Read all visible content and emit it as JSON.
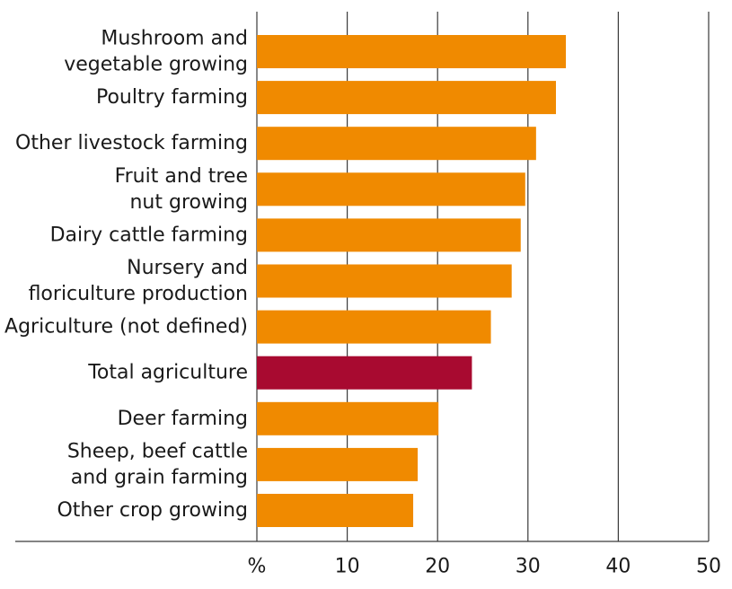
{
  "chart_data": {
    "type": "bar",
    "orientation": "horizontal",
    "categories": [
      [
        "Mushroom and",
        "vegetable growing"
      ],
      [
        "Poultry farming"
      ],
      [
        "Other livestock farming"
      ],
      [
        "Fruit and tree",
        "nut growing"
      ],
      [
        "Dairy cattle farming"
      ],
      [
        "Nursery and",
        "floriculture production"
      ],
      [
        "Agriculture (not defined)"
      ],
      [
        "Total agriculture"
      ],
      [
        "Deer farming"
      ],
      [
        "Sheep, beef cattle",
        "and grain farming"
      ],
      [
        "Other crop growing"
      ]
    ],
    "values": [
      34.2,
      33.1,
      30.9,
      29.7,
      29.2,
      28.2,
      25.9,
      23.8,
      20.1,
      17.8,
      17.3
    ],
    "highlight_index": 7,
    "xlim": [
      0,
      50
    ],
    "xticks": [
      10,
      20,
      30,
      40,
      50
    ],
    "xunit_label": "%",
    "grid": true,
    "colors": {
      "bar": "#f08a00",
      "highlight": "#a80a30",
      "grid": "#3a3a3a"
    }
  }
}
